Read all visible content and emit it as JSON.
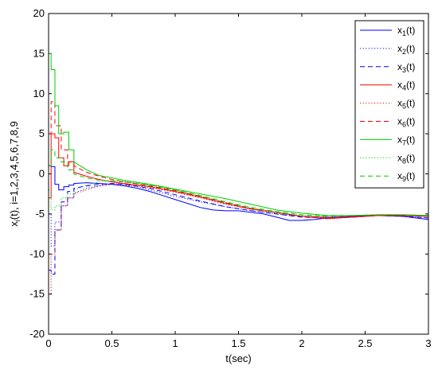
{
  "chart_data": {
    "type": "line",
    "title": "",
    "xlabel": "t(sec)",
    "ylabel": "x_i(t), i=1,2,3,4,5,6,7,8,9",
    "ylabel_parts": {
      "base": "x",
      "sub": "i",
      "rest": "(t), i=1,2,3,4,5,6,7,8,9"
    },
    "xlim": [
      0,
      3
    ],
    "ylim": [
      -20,
      20
    ],
    "xticks": [
      "0",
      "0.5",
      "1",
      "1.5",
      "2",
      "2.5",
      "3"
    ],
    "yticks": [
      "-20",
      "-15",
      "-10",
      "-5",
      "0",
      "5",
      "10",
      "15",
      "20"
    ],
    "grid": false,
    "legend_position": "top-right",
    "series": [
      {
        "name": "x_1(t)",
        "label_base": "x",
        "label_sub": "1",
        "label_rest": "(t)",
        "color": "#0000ff",
        "style": "solid",
        "x": [
          0,
          0.02,
          0.05,
          0.08,
          0.12,
          0.16,
          0.2,
          0.3,
          0.4,
          0.5,
          0.6,
          0.7,
          0.8,
          0.9,
          1.0,
          1.1,
          1.2,
          1.3,
          1.4,
          1.5,
          1.6,
          1.7,
          1.8,
          1.9,
          2.0,
          2.1,
          2.2,
          2.4,
          2.6,
          2.8,
          3.0
        ],
        "y": [
          1,
          0.9,
          -1.3,
          -2,
          -1.6,
          -1.4,
          -1.2,
          -1.1,
          -1.2,
          -1.3,
          -1.5,
          -1.8,
          -2.2,
          -2.7,
          -3.2,
          -3.7,
          -4.2,
          -4.5,
          -4.6,
          -4.6,
          -4.8,
          -5.0,
          -5.4,
          -5.8,
          -5.8,
          -5.7,
          -5.5,
          -5.3,
          -5.2,
          -5.3,
          -5.7
        ]
      },
      {
        "name": "x_2(t)",
        "label_base": "x",
        "label_sub": "2",
        "label_rest": "(t)",
        "color": "#0000ff",
        "style": "dotted",
        "x": [
          0,
          0.02,
          0.05,
          0.1,
          0.15,
          0.2,
          0.3,
          0.4,
          0.5,
          0.6,
          0.7,
          0.8,
          0.9,
          1.0,
          1.2,
          1.4,
          1.6,
          1.8,
          2.0,
          2.2,
          2.4,
          2.6,
          2.8,
          3.0
        ],
        "y": [
          -5,
          -9,
          -6,
          -4,
          -3,
          -2.4,
          -1.8,
          -1.5,
          -1.3,
          -1.4,
          -1.6,
          -2.0,
          -2.4,
          -2.8,
          -3.5,
          -4.1,
          -4.6,
          -5.0,
          -5.3,
          -5.4,
          -5.3,
          -5.2,
          -5.3,
          -5.5
        ]
      },
      {
        "name": "x_3(t)",
        "label_base": "x",
        "label_sub": "3",
        "label_rest": "(t)",
        "color": "#0000ff",
        "style": "dashed",
        "x": [
          0,
          0.02,
          0.05,
          0.1,
          0.15,
          0.2,
          0.3,
          0.4,
          0.5,
          0.6,
          0.8,
          1.0,
          1.2,
          1.4,
          1.6,
          1.8,
          2.0,
          2.2,
          2.4,
          2.6,
          2.8,
          3.0
        ],
        "y": [
          -12,
          -12.5,
          -7,
          -3.5,
          -2.2,
          -1.8,
          -1.5,
          -1.3,
          -1.2,
          -1.3,
          -1.8,
          -2.6,
          -3.4,
          -4.1,
          -4.6,
          -5.0,
          -5.4,
          -5.5,
          -5.4,
          -5.2,
          -5.3,
          -5.5
        ]
      },
      {
        "name": "x_4(t)",
        "label_base": "x",
        "label_sub": "4",
        "label_rest": "(t)",
        "color": "#ff0000",
        "style": "solid",
        "x": [
          0,
          0.02,
          0.05,
          0.08,
          0.12,
          0.16,
          0.2,
          0.3,
          0.4,
          0.5,
          0.6,
          0.8,
          1.0,
          1.2,
          1.4,
          1.6,
          1.8,
          2.0,
          2.2,
          2.4,
          2.6,
          2.8,
          3.0
        ],
        "y": [
          -3,
          5,
          4.5,
          2,
          1,
          1.5,
          0.2,
          -0.3,
          -0.7,
          -1.0,
          -1.2,
          -1.6,
          -2.2,
          -2.9,
          -3.7,
          -4.4,
          -4.8,
          -5.3,
          -5.6,
          -5.4,
          -5.2,
          -5.2,
          -5.3
        ]
      },
      {
        "name": "x_5(t)",
        "label_base": "x",
        "label_sub": "5",
        "label_rest": "(t)",
        "color": "#ff0000",
        "style": "dotted",
        "x": [
          0,
          0.02,
          0.05,
          0.1,
          0.15,
          0.2,
          0.3,
          0.4,
          0.5,
          0.6,
          0.8,
          1.0,
          1.2,
          1.4,
          1.6,
          1.8,
          2.0,
          2.2,
          2.4,
          2.6,
          2.8,
          3.0
        ],
        "y": [
          -15,
          -10,
          -7,
          -4,
          -3,
          -2.5,
          -2,
          -1.5,
          -1.2,
          -1.3,
          -1.7,
          -2.3,
          -3.0,
          -3.8,
          -4.4,
          -4.9,
          -5.3,
          -5.4,
          -5.3,
          -5.2,
          -5.2,
          -5.3
        ]
      },
      {
        "name": "x_6(t)",
        "label_base": "x",
        "label_sub": "6",
        "label_rest": "(t)",
        "color": "#ff0000",
        "style": "dashed",
        "x": [
          0,
          0.02,
          0.05,
          0.1,
          0.15,
          0.2,
          0.3,
          0.4,
          0.5,
          0.6,
          0.8,
          1.0,
          1.2,
          1.4,
          1.6,
          1.8,
          2.0,
          2.2,
          2.4,
          2.6,
          2.8,
          3.0
        ],
        "y": [
          5,
          9,
          6,
          3,
          1.5,
          1,
          0.2,
          -0.3,
          -0.7,
          -1.0,
          -1.5,
          -2.1,
          -2.8,
          -3.6,
          -4.3,
          -4.8,
          -5.3,
          -5.5,
          -5.4,
          -5.2,
          -5.2,
          -5.3
        ]
      },
      {
        "name": "x_7(t)",
        "label_base": "x",
        "label_sub": "7",
        "label_rest": "(t)",
        "color": "#00cc00",
        "style": "solid",
        "x": [
          0,
          0.02,
          0.05,
          0.08,
          0.12,
          0.16,
          0.2,
          0.3,
          0.4,
          0.5,
          0.6,
          0.8,
          1.0,
          1.2,
          1.4,
          1.6,
          1.8,
          2.0,
          2.2,
          2.4,
          2.6,
          2.8,
          3.0
        ],
        "y": [
          15,
          13,
          8.5,
          5,
          5.2,
          3,
          1.5,
          0.5,
          -0.2,
          -0.5,
          -0.8,
          -1.3,
          -1.9,
          -2.5,
          -3.1,
          -3.8,
          -4.5,
          -4.9,
          -5.2,
          -5.2,
          -5.1,
          -5.1,
          -5.2
        ]
      },
      {
        "name": "x_8(t)",
        "label_base": "x",
        "label_sub": "8",
        "label_rest": "(t)",
        "color": "#00cc00",
        "style": "dotted",
        "x": [
          0,
          0.02,
          0.05,
          0.1,
          0.15,
          0.2,
          0.3,
          0.4,
          0.5,
          0.6,
          0.8,
          1.0,
          1.2,
          1.4,
          1.6,
          1.8,
          2.0,
          2.2,
          2.4,
          2.6,
          2.8,
          3.0
        ],
        "y": [
          -2,
          -4.5,
          -4,
          -3,
          -2.5,
          -2,
          -1.4,
          -1.0,
          -0.8,
          -0.9,
          -1.4,
          -2.0,
          -2.8,
          -3.6,
          -4.3,
          -4.8,
          -5.2,
          -5.3,
          -5.2,
          -5.1,
          -5.1,
          -5.2
        ]
      },
      {
        "name": "x_9(t)",
        "label_base": "x",
        "label_sub": "9",
        "label_rest": "(t)",
        "color": "#00cc00",
        "style": "dashed",
        "x": [
          0,
          0.02,
          0.05,
          0.1,
          0.15,
          0.2,
          0.3,
          0.4,
          0.5,
          0.6,
          0.8,
          1.0,
          1.2,
          1.4,
          1.6,
          1.8,
          2.0,
          2.2,
          2.4,
          2.6,
          2.8,
          3.0
        ],
        "y": [
          1,
          3,
          2,
          1.5,
          0.5,
          0,
          -0.5,
          -0.8,
          -0.9,
          -1.0,
          -1.4,
          -2.0,
          -2.7,
          -3.5,
          -4.2,
          -4.7,
          -5.1,
          -5.3,
          -5.2,
          -5.1,
          -5.1,
          -5.2
        ]
      }
    ]
  }
}
